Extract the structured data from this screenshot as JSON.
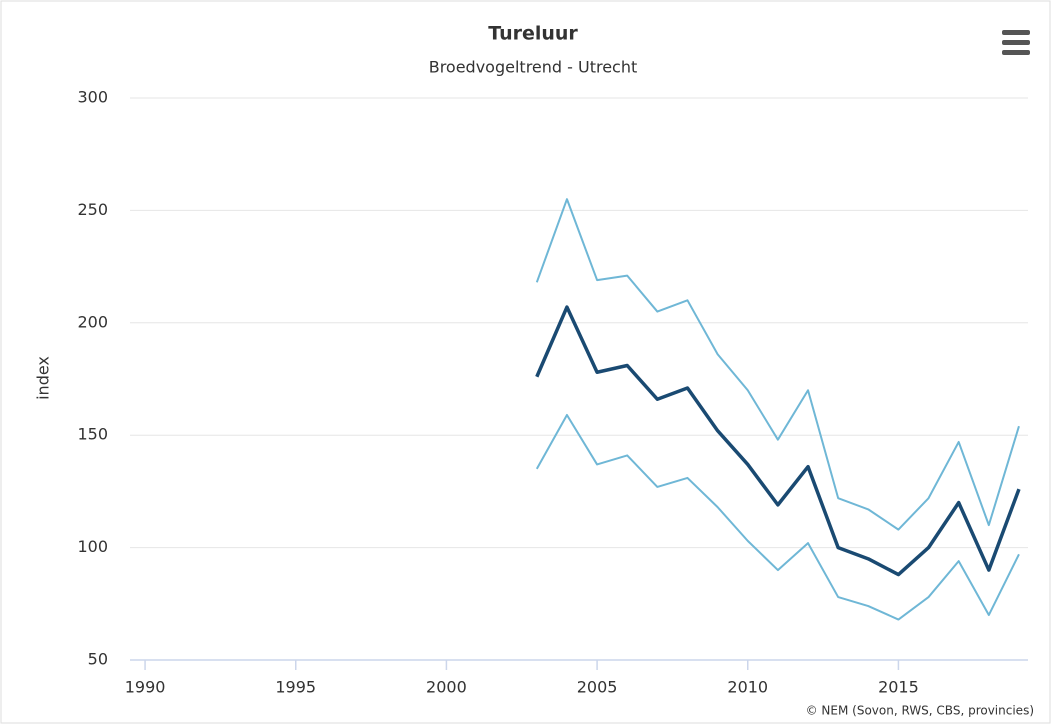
{
  "chart_data": {
    "type": "line",
    "title": "Tureluur",
    "subtitle": "Broedvogeltrend - Utrecht",
    "y_label": "index",
    "credits": "© NEM (Sovon, RWS, CBS, provincies)",
    "x": [
      2003,
      2004,
      2005,
      2006,
      2007,
      2008,
      2009,
      2010,
      2011,
      2012,
      2013,
      2014,
      2015,
      2016,
      2017,
      2018,
      2019
    ],
    "series": [
      {
        "color": "#6fb7d6",
        "width": 2,
        "values": [
          218,
          255,
          219,
          221,
          205,
          210,
          186,
          170,
          148,
          170,
          122,
          117,
          108,
          122,
          147,
          110,
          154
        ]
      },
      {
        "color": "#6fb7d6",
        "width": 2,
        "values": [
          135,
          159,
          137,
          141,
          127,
          131,
          118,
          103,
          90,
          102,
          78,
          74,
          68,
          78,
          94,
          70,
          97
        ]
      },
      {
        "color": "#1a4a72",
        "width": 3.5,
        "values": [
          176,
          207,
          178,
          181,
          166,
          171,
          152,
          137,
          119,
          136,
          100,
          95,
          88,
          100,
          120,
          90,
          126
        ]
      }
    ],
    "xlim": [
      1989.5,
      2019.3
    ],
    "ylim": [
      50,
      300
    ],
    "xticks": [
      1990,
      1995,
      2000,
      2005,
      2010,
      2015
    ],
    "yticks": [
      50,
      100,
      150,
      200,
      250,
      300
    ],
    "grid": true
  }
}
